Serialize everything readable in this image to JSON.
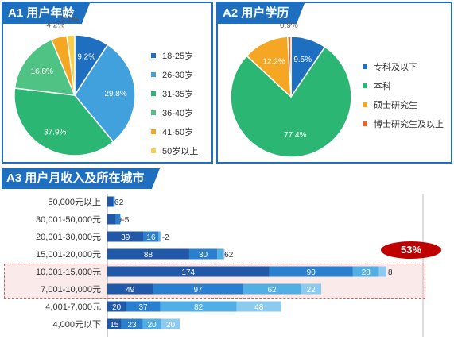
{
  "panels": {
    "a1_title": "A1 用户年龄",
    "a2_title": "A2 用户学历",
    "a3_title": "A3 用户月收入及所在城市"
  },
  "badge": "53%",
  "chart_data": [
    {
      "type": "pie",
      "title": "A1 用户年龄",
      "labels": [
        "18-25岁",
        "26-30岁",
        "31-35岁",
        "36-40岁",
        "41-50岁",
        "50岁以上"
      ],
      "values": [
        9.2,
        29.8,
        37.9,
        16.8,
        4.2,
        2.1
      ],
      "value_labels": [
        "9.2%",
        "29.8%",
        "37.9%",
        "16.8%",
        "4.2%",
        "2.1%"
      ],
      "colors": [
        "#1f6fc0",
        "#41a1dc",
        "#2bb673",
        "#4fc383",
        "#f5a623",
        "#f8d04a"
      ],
      "legend": "right"
    },
    {
      "type": "pie",
      "title": "A2 用户学历",
      "labels": [
        "专科及以下",
        "本科",
        "硕士研究生",
        "博士研究生及以上"
      ],
      "values": [
        9.5,
        77.4,
        12.2,
        0.9
      ],
      "value_labels": [
        "9.5%",
        "77.4%",
        "12.2%",
        "0.9%"
      ],
      "colors": [
        "#1f6fc0",
        "#2bb673",
        "#f5a623",
        "#e2692e"
      ],
      "legend": "right"
    },
    {
      "type": "bar",
      "orientation": "horizontal",
      "stacked": true,
      "title": "A3 用户月收入及所在城市",
      "categories": [
        "50,000元以上",
        "30,001-50,000元",
        "20,001-30,000元",
        "15,001-20,000元",
        "10,001-15,000元",
        "7,001-10,000元",
        "4,001-7,000元",
        "4,000元以下"
      ],
      "series": [
        {
          "values": [
            6,
            9,
            39,
            88,
            174,
            49,
            20,
            15
          ]
        },
        {
          "values": [
            2,
            5,
            16,
            30,
            90,
            97,
            37,
            23
          ]
        },
        {
          "values": [
            0,
            0,
            2,
            6,
            28,
            62,
            82,
            20
          ]
        },
        {
          "values": [
            0,
            0,
            0,
            2,
            8,
            22,
            48,
            20
          ]
        }
      ],
      "segment_labels": [
        [
          "6",
          "-2",
          "",
          ""
        ],
        [
          "9",
          "-5",
          "",
          ""
        ],
        [
          "39",
          "16",
          "-2",
          ""
        ],
        [
          "88",
          "30",
          "6",
          "-2"
        ],
        [
          "174",
          "90",
          "28",
          "8"
        ],
        [
          "49",
          "97",
          "62",
          "22"
        ],
        [
          "20",
          "37",
          "82",
          "48"
        ],
        [
          "15",
          "23",
          "20",
          "20"
        ]
      ],
      "colors": [
        "#2158a8",
        "#2a80cf",
        "#52aee3",
        "#8ccaee"
      ],
      "highlighted_categories": [
        "10,001-15,000元",
        "7,001-10,000元"
      ]
    }
  ]
}
